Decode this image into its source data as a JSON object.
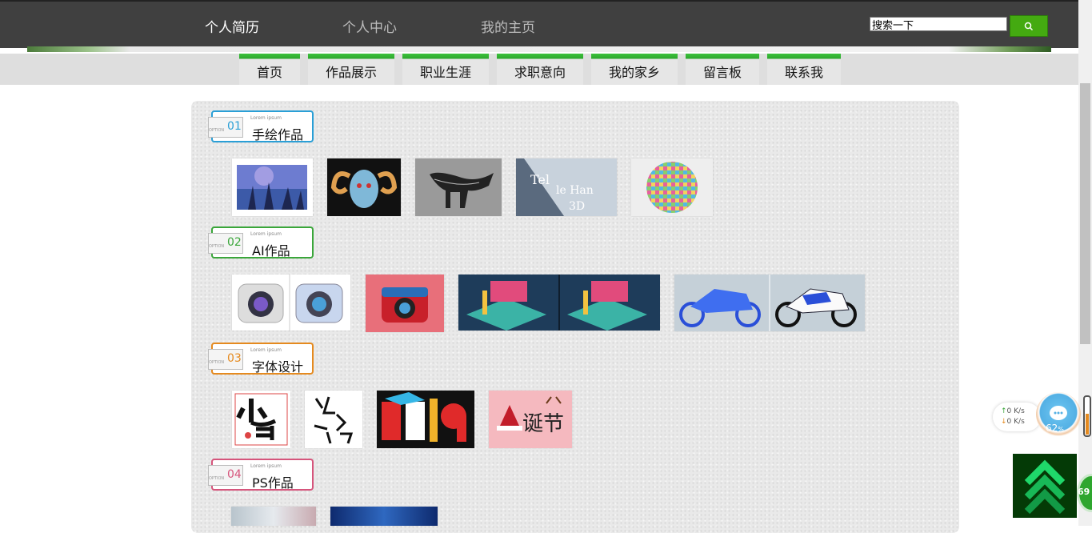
{
  "top_nav": [
    "个人简历",
    "个人中心",
    "我的主页"
  ],
  "search": {
    "value": "搜索一下",
    "button_icon": "search-icon"
  },
  "menu": [
    "首页",
    "作品展示",
    "职业生涯",
    "求职意向",
    "我的家乡",
    "留言板",
    "联系我"
  ],
  "sections": [
    {
      "num": "01",
      "title": "手绘作品",
      "lorem": "Lorem ipsum",
      "tab": "OPTION",
      "color": "#2a9fd6"
    },
    {
      "num": "02",
      "title": "AI作品",
      "lorem": "Lorem ipsum",
      "tab": "OPTION",
      "color": "#3aa63a"
    },
    {
      "num": "03",
      "title": "字体设计",
      "lorem": "Lorem ipsum",
      "tab": "OPTION",
      "color": "#e58a1f"
    },
    {
      "num": "04",
      "title": "PS作品",
      "lorem": "Lorem ipsum",
      "tab": "OPTION",
      "color": "#d6557c"
    }
  ],
  "widgets": {
    "upload_speed": "0  K/s",
    "download_speed": "0  K/s",
    "percent": "62",
    "percent_unit": "%",
    "badge_number": "69"
  },
  "colors": {
    "topbar": "#404040",
    "menu_accent": "#2ea82e",
    "search_button": "#44aa11"
  }
}
